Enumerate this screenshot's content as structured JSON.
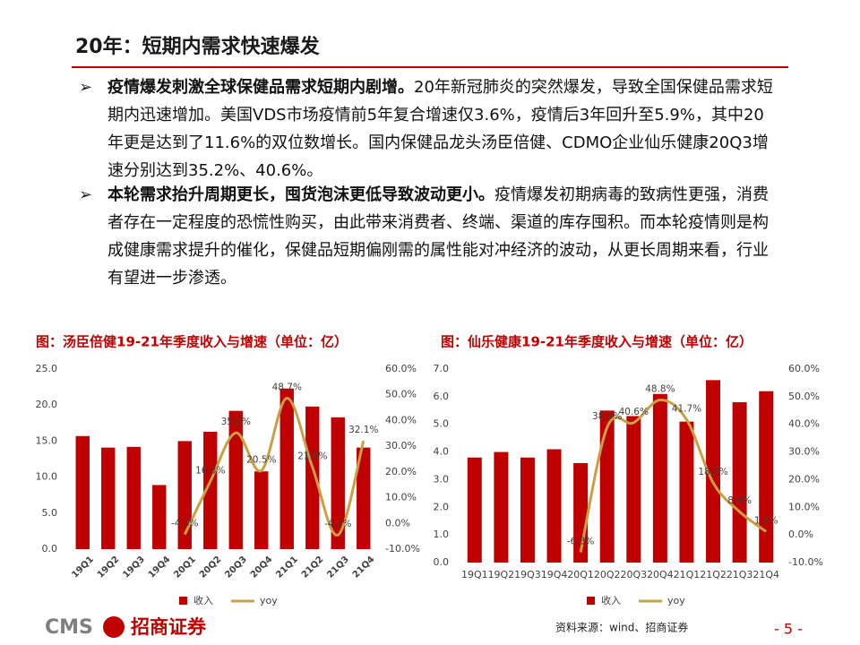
{
  "title": "20年：短期内需求快速爆发",
  "bullets": [
    {
      "bold": "疫情爆发刺激全球保健品需求短期内剧增。",
      "text": "20年新冠肺炎的突然爆发，导致全国保健品需求短期内迅速增加。美国VDS市场疫情前5年复合增速仅3.6%，疫情后3年回升至5.9%，其中20年更是达到了11.6%的双位数增长。国内保健品龙头汤臣倍健、CDMO企业仙乐健康20Q3增速分别达到35.2%、40.6%。"
    },
    {
      "bold": "本轮需求抬升周期更长，囤货泡沫更低导致波动更小。",
      "text": "疫情爆发初期病毒的致病性更强，消费者存在一定程度的恐慌性购买，由此带来消费者、终端、渠道的库存囤积。而本轮疫情则是构成健康需求提升的催化，保健品短期偏刚需的属性能对冲经济的波动，从更长周期来看，行业有望进一步渗透。"
    }
  ],
  "chart_data": [
    {
      "type": "bar_line",
      "title": "图：汤臣倍健19-21年季度收入与增速（单位：亿）",
      "categories": [
        "19Q1",
        "19Q2",
        "19Q3",
        "19Q4",
        "20Q1",
        "20Q2",
        "20Q3",
        "20Q4",
        "21Q1",
        "21Q2",
        "21Q3",
        "21Q4"
      ],
      "series": [
        {
          "name": "收入",
          "color": "#c00000",
          "values": [
            15.7,
            14.1,
            14.2,
            8.9,
            15.0,
            16.3,
            19.2,
            10.8,
            22.3,
            19.8,
            18.3,
            14.1
          ]
        },
        {
          "name": "yoy",
          "color": "#c9a042",
          "axis": "y2",
          "values": [
            null,
            null,
            null,
            null,
            -4.3,
            16.3,
            35.2,
            20.5,
            48.7,
            21.9,
            -4.5,
            32.1
          ],
          "value_labels": [
            null,
            null,
            null,
            null,
            "-4.3%",
            "16.3%",
            "35.2%",
            "20.5%",
            "48.7%",
            "21.9%",
            "-4.5%",
            "32.1%"
          ]
        }
      ],
      "ylim": [
        0,
        25
      ],
      "yticks": [
        {
          "value": 0,
          "label": "0.0"
        },
        {
          "value": 5,
          "label": "5.0"
        },
        {
          "value": 10,
          "label": "10.0"
        },
        {
          "value": 15,
          "label": "15.0"
        },
        {
          "value": 20,
          "label": "20.0"
        },
        {
          "value": 25,
          "label": "25.0"
        }
      ],
      "y2lim": [
        -10,
        60
      ],
      "y2ticks": [
        {
          "value": -10,
          "label": "-10.0%"
        },
        {
          "value": 0,
          "label": "0.0%"
        },
        {
          "value": 10,
          "label": "10.0%"
        },
        {
          "value": 20,
          "label": "20.0%"
        },
        {
          "value": 30,
          "label": "30.0%"
        },
        {
          "value": 40,
          "label": "40.0%"
        },
        {
          "value": 50,
          "label": "50.0%"
        },
        {
          "value": 60,
          "label": "60.0%"
        }
      ]
    },
    {
      "type": "bar_line",
      "title": "图：仙乐健康19-21年季度收入与增速（单位：亿）",
      "categories": [
        "19Q1",
        "19Q2",
        "19Q3",
        "19Q4",
        "20Q1",
        "20Q2",
        "20Q3",
        "20Q4",
        "21Q1",
        "21Q2",
        "21Q3",
        "21Q4"
      ],
      "series": [
        {
          "name": "收入",
          "color": "#c00000",
          "values": [
            3.8,
            4.0,
            3.8,
            4.1,
            3.6,
            5.5,
            5.3,
            6.1,
            5.1,
            6.6,
            5.8,
            6.2
          ]
        },
        {
          "name": "yoy",
          "color": "#c9a042",
          "axis": "y2",
          "values": [
            null,
            null,
            null,
            null,
            -6.3,
            38.9,
            40.6,
            48.8,
            41.7,
            18.9,
            8.4,
            1.2
          ],
          "value_labels": [
            null,
            null,
            null,
            null,
            "-6.3%",
            "38.9%",
            "40.6%",
            "48.8%",
            "41.7%",
            "18.9%",
            "8.4%",
            "1.2%"
          ]
        }
      ],
      "ylim": [
        0,
        7
      ],
      "yticks": [
        {
          "value": 0,
          "label": "0.0"
        },
        {
          "value": 1,
          "label": "1.0"
        },
        {
          "value": 2,
          "label": "2.0"
        },
        {
          "value": 3,
          "label": "3.0"
        },
        {
          "value": 4,
          "label": "4.0"
        },
        {
          "value": 5,
          "label": "5.0"
        },
        {
          "value": 6,
          "label": "6.0"
        },
        {
          "value": 7,
          "label": "7.0"
        }
      ],
      "y2lim": [
        -10,
        60
      ],
      "y2ticks": [
        {
          "value": -10,
          "label": "-10.0%"
        },
        {
          "value": 0,
          "label": "0.0%"
        },
        {
          "value": 10,
          "label": "10.0%"
        },
        {
          "value": 20,
          "label": "20.0%"
        },
        {
          "value": 30,
          "label": "30.0%"
        },
        {
          "value": 40,
          "label": "40.0%"
        },
        {
          "value": 50,
          "label": "50.0%"
        },
        {
          "value": 60,
          "label": "60.0%"
        }
      ]
    }
  ],
  "source": "资料来源：wind、招商证券",
  "page_number": "- 5 -",
  "logo": {
    "en": "CMS",
    "cn": "招商证券"
  }
}
